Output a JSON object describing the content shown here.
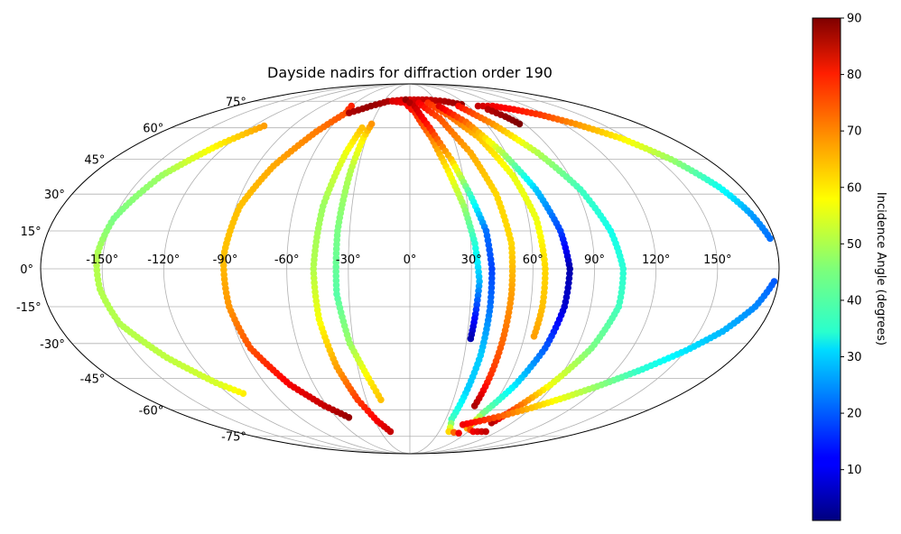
{
  "chart_data": {
    "type": "scatter",
    "projection": "mollweide",
    "title": "Dayside nadirs for diffraction order 190",
    "grid": true,
    "lon_ticks": [
      -150,
      -120,
      -90,
      -60,
      -30,
      0,
      30,
      60,
      90,
      120,
      150
    ],
    "lon_tick_labels": [
      "-150°",
      "-120°",
      "-90°",
      "-60°",
      "-30°",
      "0°",
      "30°",
      "60°",
      "90°",
      "120°",
      "150°"
    ],
    "lat_ticks": [
      75,
      60,
      45,
      30,
      15,
      0,
      -15,
      -30,
      -45,
      -60,
      -75
    ],
    "lat_tick_labels": [
      "75°",
      "60°",
      "45°",
      "30°",
      "15°",
      "0°",
      "-15°",
      "-30°",
      "-45°",
      "-60°",
      "-75°"
    ],
    "colorbar": {
      "label": "Incidence Angle (degrees)",
      "colormap": "jet",
      "range": [
        1,
        90
      ],
      "ticks": [
        10,
        20,
        30,
        40,
        50,
        60,
        70,
        80,
        90
      ],
      "tick_labels": [
        "10",
        "20",
        "30",
        "40",
        "50",
        "60",
        "70",
        "80",
        "90"
      ],
      "placement": "right"
    },
    "series": [
      {
        "points": [
          [
            -110,
            -52,
            58
          ],
          [
            -120,
            -47,
            53
          ],
          [
            -135,
            -36,
            51
          ],
          [
            -148,
            -22,
            50
          ],
          [
            -152,
            -8,
            50
          ],
          [
            -153,
            5,
            50
          ],
          [
            -150,
            20,
            45
          ],
          [
            -140,
            38,
            48
          ],
          [
            -125,
            52,
            58
          ],
          [
            -112,
            61,
            65
          ]
        ]
      },
      {
        "points": [
          [
            -50,
            -64,
            88
          ],
          [
            -62,
            -58,
            84
          ],
          [
            -75,
            -48,
            80
          ],
          [
            -86,
            -32,
            72
          ],
          [
            -90,
            -15,
            66
          ],
          [
            -91,
            5,
            62
          ],
          [
            -88,
            25,
            62
          ],
          [
            -80,
            42,
            64
          ],
          [
            -68,
            58,
            68
          ],
          [
            -58,
            68,
            72
          ],
          [
            -60,
            72,
            76
          ]
        ]
      },
      {
        "points": [
          [
            -20,
            -72,
            84
          ],
          [
            -28,
            -66,
            80
          ],
          [
            -36,
            -55,
            74
          ],
          [
            -42,
            -40,
            65
          ],
          [
            -46,
            -20,
            56
          ],
          [
            -47,
            0,
            50
          ],
          [
            -45,
            25,
            48
          ],
          [
            -40,
            48,
            55
          ],
          [
            -36,
            60,
            62
          ]
        ]
      },
      {
        "points": [
          [
            -20,
            -55,
            62
          ],
          [
            -25,
            -45,
            58
          ],
          [
            -32,
            -30,
            48
          ],
          [
            -36,
            -10,
            42
          ],
          [
            -36,
            15,
            45
          ],
          [
            -34,
            40,
            50
          ],
          [
            -32,
            55,
            58
          ],
          [
            -30,
            62,
            66
          ]
        ]
      },
      {
        "points": [
          [
            -55,
            68,
            86
          ],
          [
            -40,
            72,
            88
          ],
          [
            -25,
            75,
            86
          ],
          [
            -5,
            76,
            82
          ],
          [
            20,
            76,
            84
          ],
          [
            40,
            75,
            86
          ],
          [
            55,
            73,
            88
          ]
        ]
      },
      {
        "points": [
          [
            -20,
            75,
            82
          ],
          [
            -5,
            74,
            80
          ],
          [
            5,
            68,
            76
          ],
          [
            15,
            55,
            68
          ],
          [
            22,
            40,
            58
          ],
          [
            28,
            25,
            48
          ],
          [
            32,
            10,
            38
          ],
          [
            34,
            -5,
            28
          ],
          [
            33,
            -18,
            15
          ],
          [
            32,
            -28,
            5
          ]
        ]
      },
      {
        "points": [
          [
            -5,
            76,
            88
          ],
          [
            5,
            72,
            84
          ],
          [
            15,
            60,
            76
          ],
          [
            25,
            45,
            62
          ],
          [
            32,
            30,
            40
          ],
          [
            38,
            15,
            22
          ],
          [
            40,
            0,
            18
          ],
          [
            40,
            -15,
            22
          ],
          [
            39,
            -35,
            30
          ],
          [
            37,
            -50,
            30
          ],
          [
            35,
            -65,
            40
          ],
          [
            40,
            -72,
            60
          ],
          [
            52,
            -73,
            80
          ]
        ]
      },
      {
        "points": [
          [
            10,
            74,
            80
          ],
          [
            25,
            65,
            72
          ],
          [
            38,
            48,
            64
          ],
          [
            46,
            30,
            60
          ],
          [
            50,
            10,
            60
          ],
          [
            50,
            -10,
            65
          ],
          [
            49,
            -30,
            70
          ],
          [
            48,
            -45,
            75
          ],
          [
            47,
            -58,
            86
          ]
        ]
      },
      {
        "points": [
          [
            20,
            74,
            75
          ],
          [
            35,
            66,
            70
          ],
          [
            48,
            55,
            62
          ],
          [
            58,
            38,
            55
          ],
          [
            64,
            20,
            55
          ],
          [
            66,
            0,
            60
          ],
          [
            66,
            -15,
            62
          ],
          [
            65,
            -27,
            65
          ]
        ]
      },
      {
        "points": [
          [
            30,
            72,
            82
          ],
          [
            45,
            63,
            70
          ],
          [
            58,
            48,
            50
          ],
          [
            68,
            32,
            30
          ],
          [
            75,
            15,
            18
          ],
          [
            78,
            0,
            5
          ],
          [
            77,
            -15,
            8
          ],
          [
            73,
            -32,
            20
          ],
          [
            66,
            -48,
            32
          ],
          [
            57,
            -62,
            45
          ],
          [
            55,
            -70,
            64
          ],
          [
            65,
            -72,
            80
          ],
          [
            78,
            -72,
            84
          ]
        ]
      },
      {
        "points": [
          [
            50,
            72,
            78
          ],
          [
            65,
            62,
            66
          ],
          [
            80,
            48,
            50
          ],
          [
            92,
            32,
            40
          ],
          [
            100,
            15,
            36
          ],
          [
            104,
            0,
            38
          ],
          [
            104,
            -15,
            40
          ],
          [
            98,
            -32,
            45
          ],
          [
            88,
            -48,
            55
          ],
          [
            78,
            -60,
            72
          ],
          [
            72,
            -67,
            85
          ]
        ]
      },
      {
        "points": [
          [
            70,
            72,
            84
          ],
          [
            85,
            72,
            80
          ],
          [
            100,
            70,
            78
          ],
          [
            115,
            67,
            74
          ],
          [
            130,
            62,
            66
          ],
          [
            145,
            55,
            58
          ],
          [
            158,
            45,
            48
          ],
          [
            168,
            33,
            36
          ],
          [
            174,
            22,
            26
          ],
          [
            178,
            12,
            22
          ]
        ]
      },
      {
        "points": [
          [
            75,
            70,
            85
          ],
          [
            82,
            66,
            88
          ],
          [
            86,
            62,
            90
          ]
        ]
      },
      {
        "points": [
          [
            178,
            -5,
            20
          ],
          [
            172,
            -15,
            24
          ],
          [
            162,
            -25,
            28
          ],
          [
            150,
            -33,
            32
          ],
          [
            135,
            -41,
            38
          ],
          [
            120,
            -48,
            46
          ],
          [
            105,
            -54,
            54
          ],
          [
            90,
            -59,
            62
          ],
          [
            75,
            -63,
            70
          ],
          [
            60,
            -66,
            76
          ],
          [
            48,
            -68,
            80
          ]
        ]
      }
    ]
  }
}
